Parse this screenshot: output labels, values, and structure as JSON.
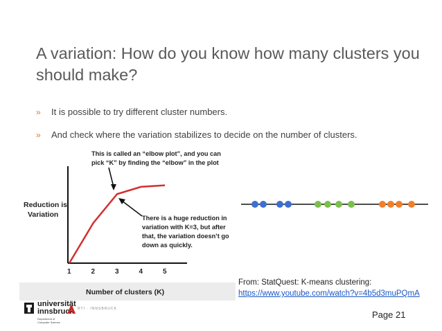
{
  "slide": {
    "title": "A variation: How do you know how many clusters you should make?",
    "bullets": [
      {
        "marker": "»",
        "text": "It is possible to try different cluster numbers."
      },
      {
        "marker": "»",
        "text": "And check where the variation stabilizes to decide on the number of clusters."
      }
    ],
    "source": {
      "prefix": "From: StatQuest: K-means clustering:",
      "link": "https://www.youtube.com/watch?v=4b5d3muPQmA"
    },
    "page": "Page 21"
  },
  "figure": {
    "annotation_top_1": "This is called an “elbow plot”, and you can",
    "annotation_top_2": "pick “K” by finding the “elbow” in the plot",
    "annotation_mid_1": "There is a huge reduction in",
    "annotation_mid_2": "variation with K=3, but after",
    "annotation_mid_3": "that, the variation doesn’t go",
    "annotation_mid_4": "down as quickly.",
    "ylabel_1": "Reduction is",
    "ylabel_2": "Variation",
    "xlabel": "Number of clusters (K)",
    "colors": {
      "line": "#d32f2f",
      "blue": "#3d6fcf",
      "green": "#7cc04b",
      "orange": "#f07f2c"
    }
  },
  "chart_data": {
    "type": "line",
    "x": [
      1,
      2,
      3,
      4,
      5
    ],
    "series": [
      {
        "values": [
          0,
          5.5,
          9.5,
          10.5,
          10.7
        ]
      }
    ],
    "xlabel": "Number of clusters (K)",
    "ylabel": "Reduction is Variation"
  },
  "logos": {
    "university_name_1": "universität",
    "university_name_2": "innsbruck",
    "department_1": "Department of",
    "department_2": "Computer Science",
    "partner": "RTI · INNSBRUCK"
  }
}
